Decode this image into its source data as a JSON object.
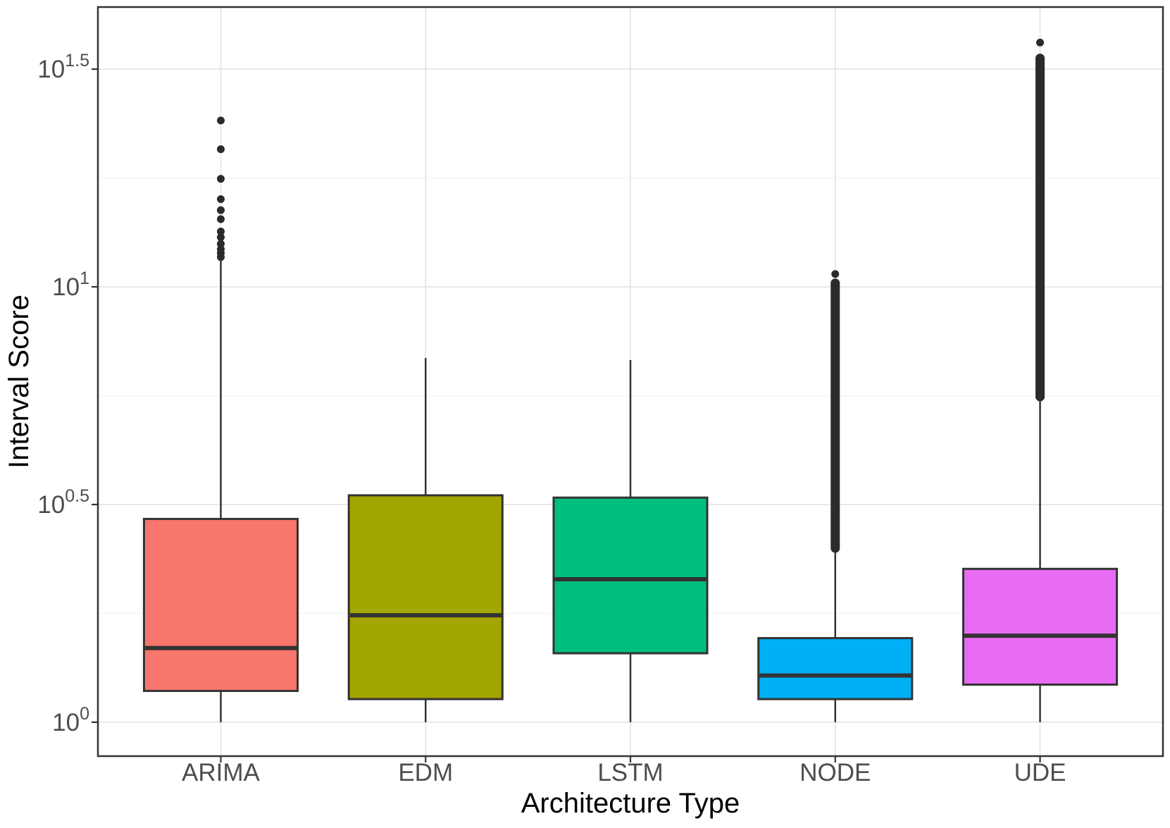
{
  "chart_data": {
    "type": "boxplot",
    "title": "",
    "xlabel": "Architecture Type",
    "ylabel": "Interval Score",
    "x_categories": [
      "ARIMA",
      "EDM",
      "LSTM",
      "NODE",
      "UDE"
    ],
    "y_scale": "log10",
    "ylim": [
      0.84,
      44
    ],
    "grid": "major+minor, horizontal and vertical at categories",
    "legend": "none",
    "y_ticks": [
      {
        "base": "10",
        "exponent": "1.5",
        "value": 31.623
      },
      {
        "base": "10",
        "exponent": "1",
        "value": 10.0
      },
      {
        "base": "10",
        "exponent": "0.5",
        "value": 3.1623
      },
      {
        "base": "10",
        "exponent": "0",
        "value": 1.0
      }
    ],
    "y_minor_ticks_log10": [
      0.25,
      0.75,
      1.25
    ],
    "series": [
      {
        "name": "ARIMA",
        "fill": "#F8766D",
        "whisker_low": 1.0,
        "q1": 1.18,
        "median": 1.48,
        "q3": 2.93,
        "whisker_high": 11.5,
        "outliers": [
          24.1,
          20.7,
          17.7,
          15.9,
          15.0,
          14.3,
          13.4,
          13.0,
          12.55,
          12.2,
          11.95,
          11.7
        ],
        "outlier_column": null
      },
      {
        "name": "EDM",
        "fill": "#A3A500",
        "whisker_low": 1.0,
        "q1": 1.13,
        "median": 1.76,
        "q3": 3.32,
        "whisker_high": 6.86,
        "outliers": [],
        "outlier_column": null
      },
      {
        "name": "LSTM",
        "fill": "#00BF7D",
        "whisker_low": 1.0,
        "q1": 1.44,
        "median": 2.13,
        "q3": 3.28,
        "whisker_high": 6.79,
        "outliers": [],
        "outlier_column": null
      },
      {
        "name": "NODE",
        "fill": "#00B0F6",
        "whisker_low": 1.0,
        "q1": 1.13,
        "median": 1.28,
        "q3": 1.56,
        "whisker_high": 2.51,
        "outliers": [
          10.7
        ],
        "outlier_column": [
          2.51,
          10.2
        ]
      },
      {
        "name": "UDE",
        "fill": "#E76BF3",
        "whisker_low": 1.0,
        "q1": 1.22,
        "median": 1.58,
        "q3": 2.25,
        "whisker_high": 5.59,
        "outliers": [
          36.4
        ],
        "outlier_column": [
          5.59,
          33.5
        ]
      }
    ],
    "colors": {
      "box_border": "#333333",
      "median_line": "#333333",
      "whisker": "#333333",
      "outlier_dot": "#2b2b2b",
      "grid_major": "#e6e6e6",
      "grid_minor": "#f2f2f2",
      "panel_border": "#333333",
      "tick_label": "#4d4d4d",
      "axis_title": "#000000",
      "background": "#ffffff"
    }
  }
}
